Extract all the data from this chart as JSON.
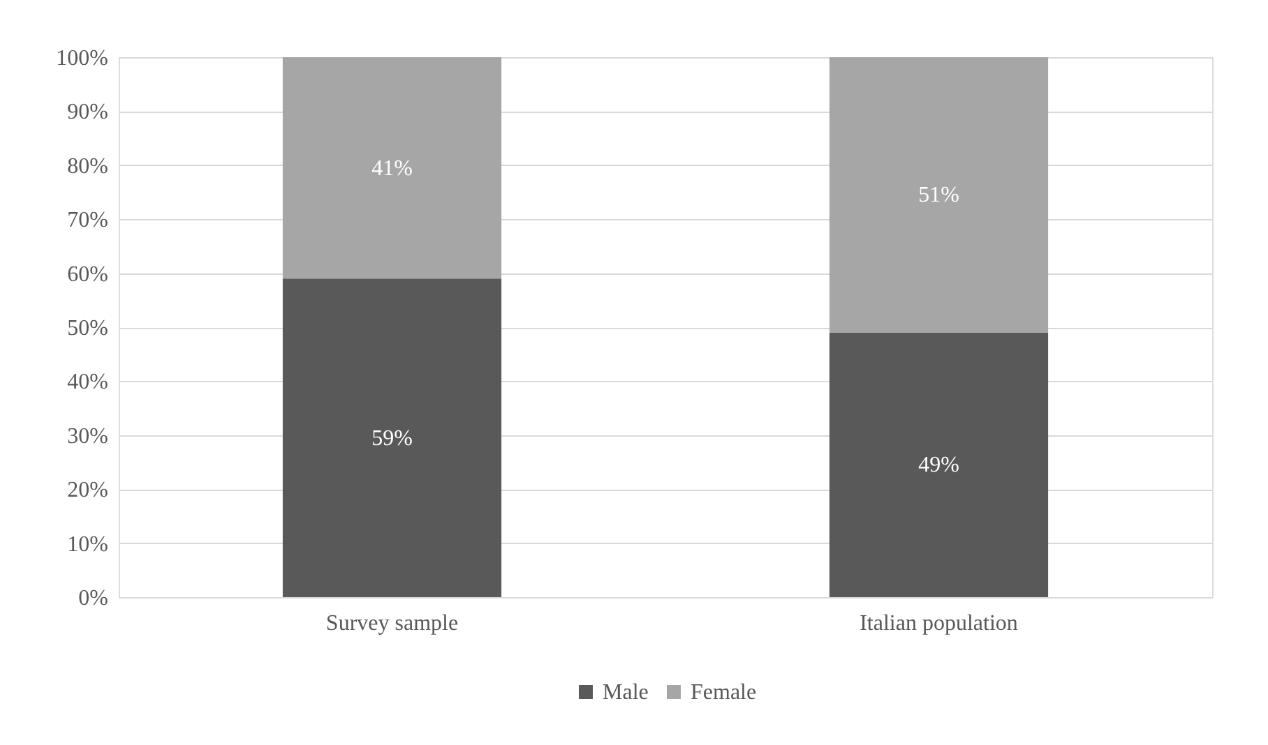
{
  "chart_data": {
    "type": "bar",
    "stacked": true,
    "categories": [
      "Survey sample",
      "Italian population"
    ],
    "series": [
      {
        "name": "Male",
        "color": "#595959",
        "values": [
          59,
          49
        ],
        "value_labels": [
          "59%",
          "49%"
        ]
      },
      {
        "name": "Female",
        "color": "#a6a6a6",
        "values": [
          41,
          51
        ],
        "value_labels": [
          "41%",
          "51%"
        ]
      }
    ],
    "ylim": [
      0,
      100
    ],
    "yticks": [
      {
        "value": 0,
        "label": "0%"
      },
      {
        "value": 10,
        "label": "10%"
      },
      {
        "value": 20,
        "label": "20%"
      },
      {
        "value": 30,
        "label": "30%"
      },
      {
        "value": 40,
        "label": "40%"
      },
      {
        "value": 50,
        "label": "50%"
      },
      {
        "value": 60,
        "label": "60%"
      },
      {
        "value": 70,
        "label": "70%"
      },
      {
        "value": 80,
        "label": "80%"
      },
      {
        "value": 90,
        "label": "90%"
      },
      {
        "value": 100,
        "label": "100%"
      }
    ],
    "grid": "y",
    "legend": "bottom"
  }
}
